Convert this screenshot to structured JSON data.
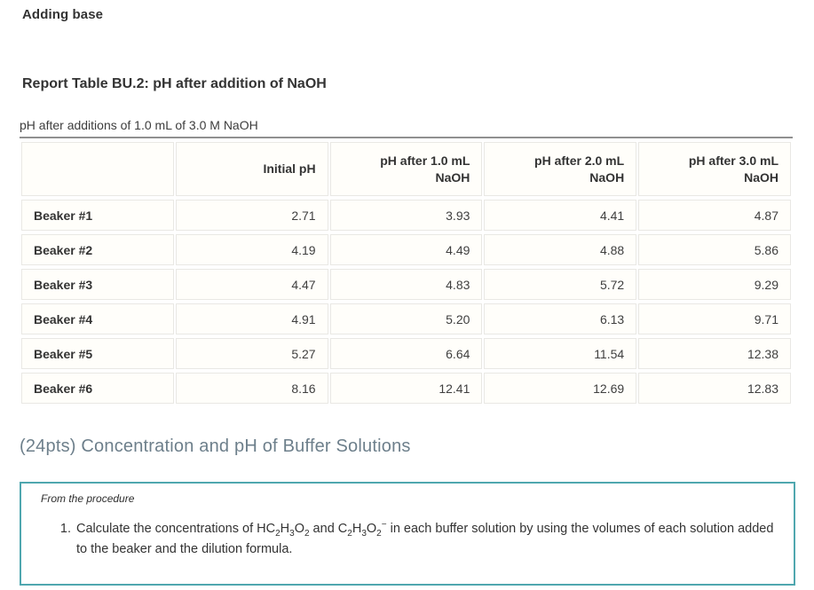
{
  "page": {
    "section_title": "Adding base",
    "report_table_title": "Report Table BU.2: pH after addition of NaOH",
    "table_caption": "pH after additions of 1.0 mL of 3.0 M NaOH"
  },
  "table": {
    "columns": [
      "",
      "Initial pH",
      "pH after 1.0 mL\nNaOH",
      "pH after 2.0 mL\nNaOH",
      "pH after 3.0 mL\nNaOH"
    ],
    "rows": [
      {
        "label": "Beaker #1",
        "values": [
          "2.71",
          "3.93",
          "4.41",
          "4.87"
        ]
      },
      {
        "label": "Beaker #2",
        "values": [
          "4.19",
          "4.49",
          "4.88",
          "5.86"
        ]
      },
      {
        "label": "Beaker #3",
        "values": [
          "4.47",
          "4.83",
          "5.72",
          "9.29"
        ]
      },
      {
        "label": "Beaker #4",
        "values": [
          "4.91",
          "5.20",
          "6.13",
          "9.71"
        ]
      },
      {
        "label": "Beaker #5",
        "values": [
          "5.27",
          "6.64",
          "11.54",
          "12.38"
        ]
      },
      {
        "label": "Beaker #6",
        "values": [
          "8.16",
          "12.41",
          "12.69",
          "12.83"
        ]
      }
    ]
  },
  "buffer_section": {
    "heading": "(24pts) Concentration and pH of Buffer Solutions",
    "procedure_label": "From the procedure",
    "item_parts": [
      {
        "t": "Calculate the concentrations of HC"
      },
      {
        "sub": "2"
      },
      {
        "t": "H"
      },
      {
        "sub": "3"
      },
      {
        "t": "O"
      },
      {
        "sub": "2"
      },
      {
        "t": " and C"
      },
      {
        "sub": "2"
      },
      {
        "t": "H"
      },
      {
        "sub": "3"
      },
      {
        "t": "O"
      },
      {
        "sub": "2"
      },
      {
        "sup": "−"
      },
      {
        "t": " in each buffer solution by using the volumes of each solution added to the beaker and the dilution formula."
      }
    ]
  },
  "colors": {
    "accent_teal": "#4FA7AF",
    "heading_gray_blue": "#6D7F8B",
    "table_top_rule": "#909090",
    "cell_border": "#E9E8E4",
    "cell_background": "#FFFEFA",
    "text": "#333333"
  }
}
